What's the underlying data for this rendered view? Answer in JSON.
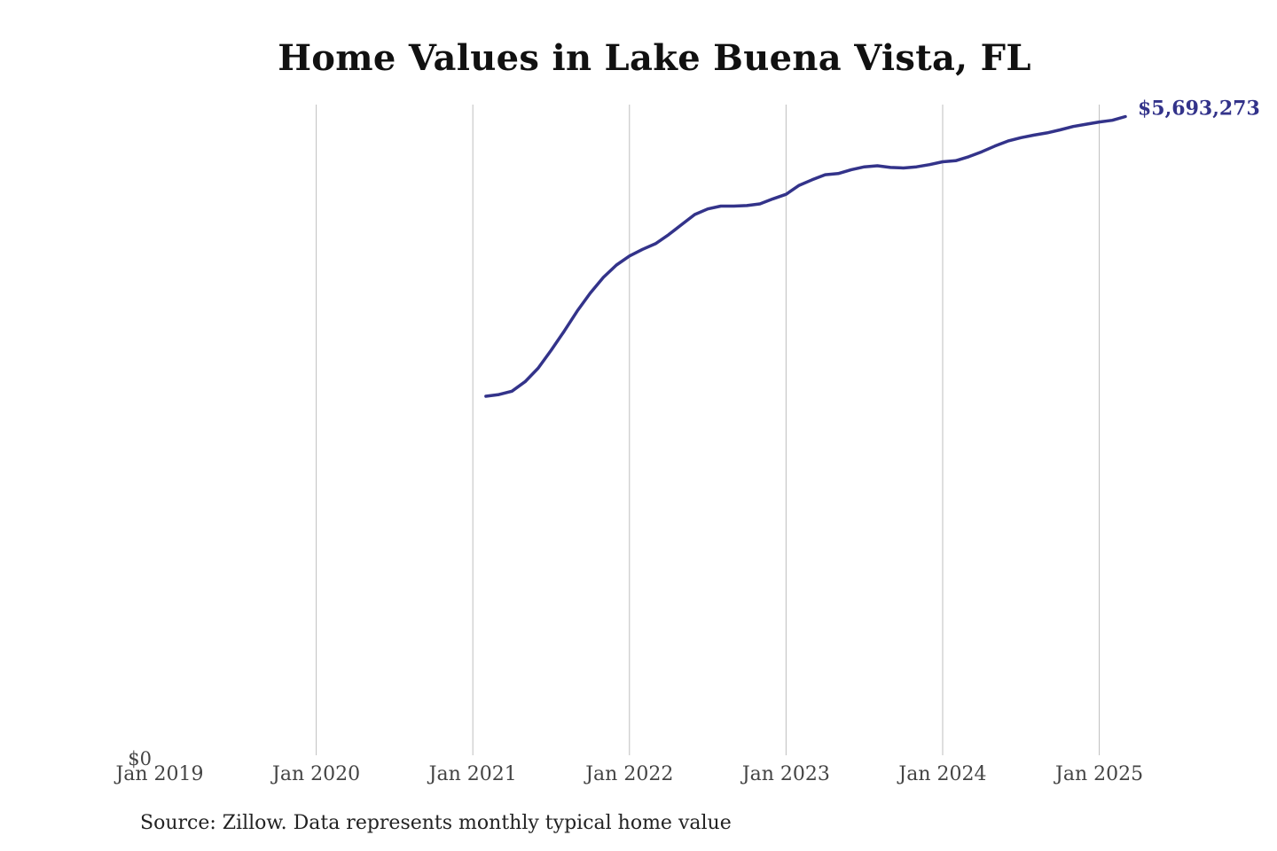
{
  "chart_data": {
    "type": "line",
    "title": "Home Values in Lake Buena Vista, FL",
    "source": "Source: Zillow. Data represents monthly typical home value",
    "xlabel": "",
    "ylabel": "",
    "x_ticks": [
      "Jan 2019",
      "Jan 2020",
      "Jan 2021",
      "Jan 2022",
      "Jan 2023",
      "Jan 2024",
      "Jan 2025"
    ],
    "y_ticks": [
      {
        "value": 0,
        "label": "$0"
      }
    ],
    "xlim": [
      "2019-01",
      "2025-03"
    ],
    "ylim": [
      0,
      5800000
    ],
    "grid": "vertical",
    "line_color": "#33338a",
    "end_label": "$5,693,273",
    "series": [
      {
        "x": [
          "2021-02",
          "2021-03",
          "2021-04",
          "2021-05",
          "2021-06",
          "2021-07",
          "2021-08",
          "2021-09",
          "2021-10",
          "2021-11",
          "2021-12",
          "2022-01",
          "2022-02",
          "2022-03",
          "2022-04",
          "2022-05",
          "2022-06",
          "2022-07",
          "2022-08",
          "2022-09",
          "2022-10",
          "2022-11",
          "2022-12",
          "2023-01",
          "2023-02",
          "2023-03",
          "2023-04",
          "2023-05",
          "2023-06",
          "2023-07",
          "2023-08",
          "2023-09",
          "2023-10",
          "2023-11",
          "2023-12",
          "2024-01",
          "2024-02",
          "2024-03",
          "2024-04",
          "2024-05",
          "2024-06",
          "2024-07",
          "2024-08",
          "2024-09",
          "2024-10",
          "2024-11",
          "2024-12",
          "2025-01",
          "2025-02",
          "2025-03"
        ],
        "y": [
          3200000,
          3215000,
          3245000,
          3330000,
          3450000,
          3610000,
          3780000,
          3960000,
          4120000,
          4260000,
          4370000,
          4450000,
          4510000,
          4560000,
          4640000,
          4730000,
          4820000,
          4870000,
          4895000,
          4895000,
          4900000,
          4915000,
          4960000,
          5000000,
          5080000,
          5130000,
          5175000,
          5185000,
          5220000,
          5245000,
          5255000,
          5240000,
          5235000,
          5245000,
          5265000,
          5290000,
          5300000,
          5335000,
          5380000,
          5430000,
          5475000,
          5505000,
          5528000,
          5548000,
          5575000,
          5605000,
          5625000,
          5645000,
          5660000,
          5693273
        ]
      }
    ]
  }
}
